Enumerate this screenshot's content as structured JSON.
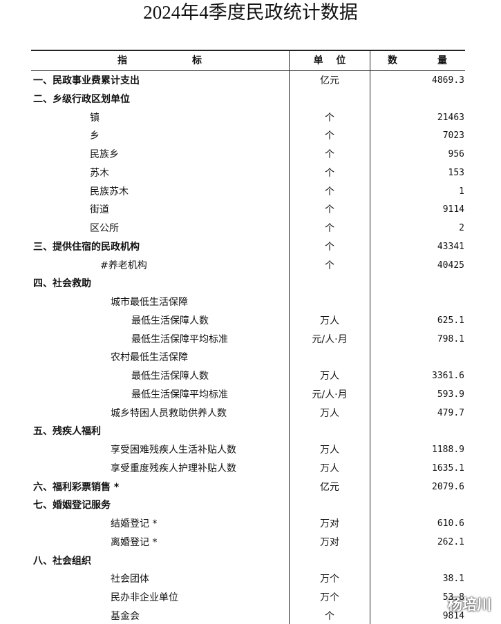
{
  "title": "2024年4季度民政统计数据",
  "table": {
    "header": [
      "指",
      "标",
      "单 位",
      "数",
      "量"
    ],
    "rows": [
      [
        "一、民政事业费累计支出",
        "亿元",
        "4869.3"
      ],
      [
        "二、乡级行政区划单位",
        null,
        null
      ],
      [
        "镇",
        "个",
        "21463"
      ],
      [
        "乡",
        "个",
        "7023"
      ],
      [
        "民族乡",
        "个",
        "956"
      ],
      [
        "苏木",
        "个",
        "153"
      ],
      [
        "民族苏木",
        "个",
        "1"
      ],
      [
        "街道",
        "个",
        "9114"
      ],
      [
        "区公所",
        "个",
        "2"
      ],
      [
        "三、提供住宿的民政机构",
        "个",
        "43341"
      ],
      [
        "#养老机构",
        "个",
        "40425"
      ],
      [
        "四、社会救助",
        null,
        null
      ],
      [
        "城市最低生活保障",
        null,
        null
      ],
      [
        "最低生活保障人数",
        "万人",
        "625.1"
      ],
      [
        "最低生活保障平均标准",
        "元/人·月",
        "798.1"
      ],
      [
        "农村最低生活保障",
        null,
        null
      ],
      [
        "最低生活保障人数",
        "万人",
        "3361.6"
      ],
      [
        "最低生活保障平均标准",
        "元/人·月",
        "593.9"
      ],
      [
        "城乡特困人员救助供养人数",
        "万人",
        "479.7"
      ],
      [
        "五、残疾人福利",
        null,
        null
      ],
      [
        "享受困难残疾人生活补贴人数",
        "万人",
        "1188.9"
      ],
      [
        "享受重度残疾人护理补贴人数",
        "万人",
        "1635.1"
      ],
      [
        "六、福利彩票销售 *",
        "亿元",
        "2079.6"
      ],
      [
        "七、婚姻登记服务",
        null,
        null
      ],
      [
        "结婚登记 *",
        "万对",
        "610.6"
      ],
      [
        "离婚登记 *",
        "万对",
        "262.1"
      ],
      [
        "八、社会组织",
        null,
        null
      ],
      [
        "社会团体",
        "万个",
        "38.1"
      ],
      [
        "民办非企业单位",
        "万个",
        "53.8"
      ],
      [
        "基金会",
        "个",
        "9814"
      ]
    ]
  },
  "watermark": "杨培川"
}
